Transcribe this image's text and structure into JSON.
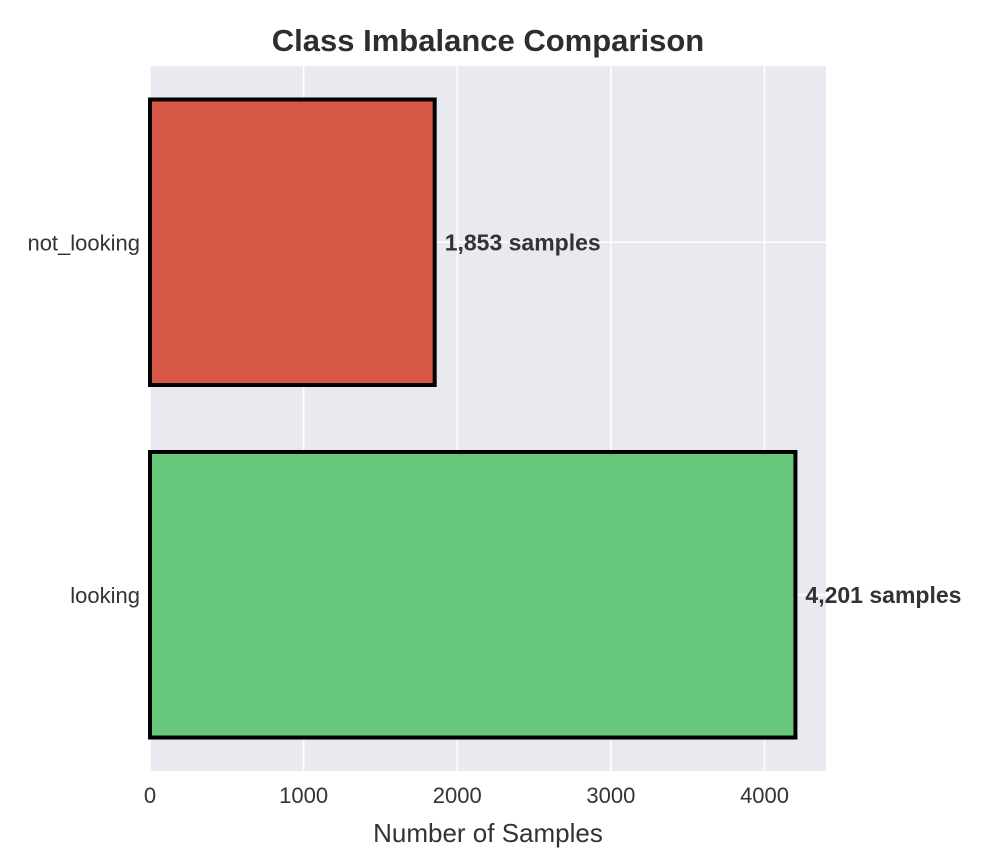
{
  "chart_data": {
    "type": "bar",
    "orientation": "horizontal",
    "title": "Class Imbalance Comparison",
    "xlabel": "Number of Samples",
    "ylabel": "",
    "categories": [
      "not_looking",
      "looking"
    ],
    "values": [
      1853,
      4201
    ],
    "data_labels": [
      "1,853 samples",
      "4,201 samples"
    ],
    "bar_colors": [
      "#d65745",
      "#67c87b"
    ],
    "bar_edge_color": "#000000",
    "xlim": [
      0,
      4400
    ],
    "x_ticks": [
      0,
      1000,
      2000,
      3000,
      4000
    ],
    "x_tick_labels": [
      "0",
      "1000",
      "2000",
      "3000",
      "4000"
    ],
    "grid": true,
    "plot_background": "#e9e9f0",
    "grid_color": "#ffffff"
  }
}
